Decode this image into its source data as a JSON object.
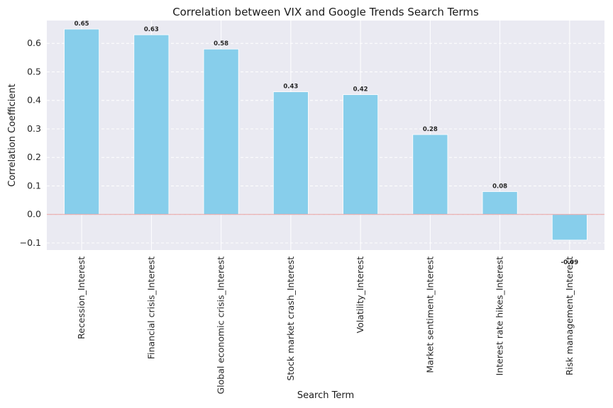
{
  "chart_data": {
    "type": "bar",
    "title": "Correlation between VIX and Google Trends Search Terms",
    "xlabel": "Search Term",
    "ylabel": "Correlation Coefficient",
    "categories": [
      "Recession_Interest",
      "Financial crisis_Interest",
      "Global economic crisis_Interest",
      "Stock market crash_Interest",
      "Volatility_Interest",
      "Market sentiment_Interest",
      "Interest rate hikes_Interest",
      "Risk management_Interest"
    ],
    "values": [
      0.65,
      0.63,
      0.58,
      0.43,
      0.42,
      0.28,
      0.08,
      -0.09
    ],
    "data_labels": [
      "0.65",
      "0.63",
      "0.58",
      "0.43",
      "0.42",
      "0.28",
      "0.08",
      "-0.09"
    ],
    "ylim": [
      -0.125,
      0.68
    ],
    "yticks": [
      -0.1,
      0.0,
      0.1,
      0.2,
      0.3,
      0.4,
      0.5,
      0.6
    ],
    "ytick_labels": [
      "−0.1",
      "0.0",
      "0.1",
      "0.2",
      "0.3",
      "0.4",
      "0.5",
      "0.6"
    ],
    "zero_line": true,
    "grid": true,
    "colors": {
      "bar": "#87ceeb",
      "plot_background": "#eaeaf2",
      "grid": "#ffffff",
      "zero_line": "#e8a0a0"
    }
  }
}
